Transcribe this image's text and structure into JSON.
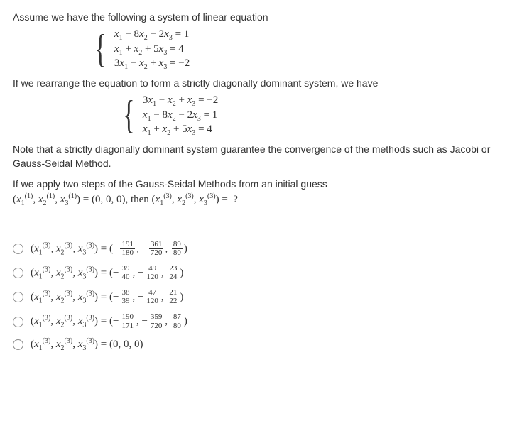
{
  "intro": "Assume we have the following  a system of linear equation",
  "system1": {
    "lines": [
      "x₁ − 8x₂ − 2x₃ = 1",
      "x₁ + x₂ + 5x₃ = 4",
      "3x₁ − x₂ + x₃ = −2"
    ]
  },
  "rearrange": "If we rearrange the equation to form  a strictly diagonally dominant system, we have",
  "system2": {
    "lines": [
      "3x₁ − x₂ + x₃ = −2",
      "x₁ − 8x₂ − 2x₃ = 1",
      "x₁ + x₂ + 5x₃ = 4"
    ]
  },
  "note": "Note that a strictly diagonally dominant system guarantee the convergence of the methods such as Jacobi or Gauss-Seidal Method.",
  "apply": "If we apply two steps of the Gauss-Seidal Methods from an initial guess",
  "initial_guess_lhs": "(x₁⁽¹⁾, x₂⁽¹⁾, x₃⁽¹⁾) = (0, 0, 0), then (x₁⁽³⁾, x₂⁽³⁾, x₃⁽³⁾) =  ?",
  "options": [
    {
      "lhs": "triple",
      "rhs_type": "frac3",
      "neg1": true,
      "n1": "191",
      "d1": "180",
      "neg2": true,
      "n2": "361",
      "d2": "720",
      "neg3": false,
      "n3": "89",
      "d3": "80"
    },
    {
      "lhs": "triple",
      "rhs_type": "frac3",
      "neg1": true,
      "n1": "39",
      "d1": "40",
      "neg2": true,
      "n2": "49",
      "d2": "120",
      "neg3": false,
      "n3": "23",
      "d3": "24"
    },
    {
      "lhs": "triple",
      "rhs_type": "frac3",
      "neg1": true,
      "n1": "38",
      "d1": "39",
      "neg2": true,
      "n2": "47",
      "d2": "120",
      "neg3": false,
      "n3": "21",
      "d3": "22"
    },
    {
      "lhs": "triple",
      "rhs_type": "frac3",
      "neg1": true,
      "n1": "190",
      "d1": "171",
      "neg2": true,
      "n2": "359",
      "d2": "720",
      "neg3": false,
      "n3": "87",
      "d3": "80"
    },
    {
      "lhs": "triple",
      "rhs_type": "zero"
    }
  ],
  "colors": {
    "text": "#333333",
    "radio_border": "#888888"
  },
  "fonts": {
    "body": 14,
    "math": 15,
    "frac": 11
  }
}
